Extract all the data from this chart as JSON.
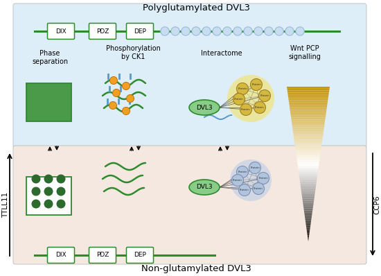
{
  "title_poly": "Polyglutamylated DVL3",
  "title_non": "Non-glutamylated DVL3",
  "label_phase": "Phase\nseparation",
  "label_phospho": "Phosphorylation\nby CK1",
  "label_interactome": "Interactome",
  "label_wnt": "Wnt PCP\nsignalling",
  "label_ttll11": "TTLL11",
  "label_ccp6": "CCP6",
  "bg_poly_color": "#ddeef8",
  "bg_non_color": "#f5e8e0",
  "domain_edge": "#2d8a2d",
  "line_color": "#2d8a2d",
  "poly_circle_fill": "#c8ddf0",
  "poly_circle_edge": "#99bbdd",
  "phase_solid_color": "#4a9a4a",
  "phase_dot_color": "#2d6a2d",
  "phospho_orange": "#f0a020",
  "phospho_orange_edge": "#c07010",
  "phospho_blue": "#5599cc",
  "dvl3_fill": "#88cc88",
  "dvl3_edge": "#2d8a2d",
  "net_poly_fill": "#f0e080",
  "net_non_fill": "#b0c8e8",
  "node_poly_fill": "#d4b840",
  "node_poly_edge": "#a08020",
  "node_non_fill": "#b0c4de",
  "node_non_edge": "#8090b0",
  "wnt_gold": [
    0.78,
    0.59,
    0.04
  ],
  "wnt_dark": [
    0.08,
    0.06,
    0.04
  ]
}
